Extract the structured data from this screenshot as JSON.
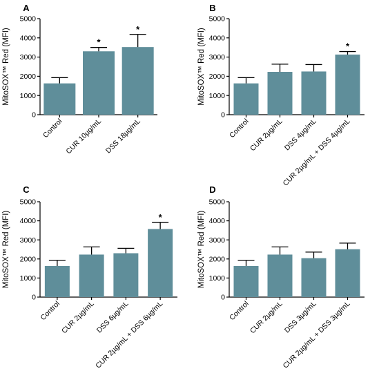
{
  "colors": {
    "bar": "#5f8e9a"
  },
  "chart_data": [
    {
      "type": "bar",
      "panel": "A",
      "ylabel": "MitoSOX™ Red (MFI)",
      "ylim": [
        0,
        5000
      ],
      "yticks": [
        0,
        1000,
        2000,
        3000,
        4000,
        5000
      ],
      "categories": [
        "Control",
        "CUR 10µg/mL",
        "DSS 18µg/mL"
      ],
      "values": [
        1630,
        3300,
        3520
      ],
      "errors": [
        300,
        200,
        660
      ],
      "significance": [
        "",
        "*",
        "*"
      ]
    },
    {
      "type": "bar",
      "panel": "B",
      "ylabel": "MitoSOX™ Red (MFI)",
      "ylim": [
        0,
        5000
      ],
      "yticks": [
        0,
        1000,
        2000,
        3000,
        4000,
        5000
      ],
      "categories": [
        "Control",
        "CUR 2µg/mL",
        "DSS 4µg/mL",
        "CUR 2µg/mL + DSS 4µg/mL"
      ],
      "values": [
        1630,
        2230,
        2250,
        3130
      ],
      "errors": [
        300,
        400,
        360,
        160
      ],
      "significance": [
        "",
        "",
        "",
        "*"
      ]
    },
    {
      "type": "bar",
      "panel": "C",
      "ylabel": "MitoSOX™ Red (MFI)",
      "ylim": [
        0,
        5000
      ],
      "yticks": [
        0,
        1000,
        2000,
        3000,
        4000,
        5000
      ],
      "categories": [
        "Control",
        "CUR 2µg/mL",
        "DSS 6µg/mL",
        "CUR 2µg/mL + DSS 6µg/mL"
      ],
      "values": [
        1630,
        2230,
        2300,
        3570
      ],
      "errors": [
        300,
        400,
        260,
        350
      ],
      "significance": [
        "",
        "",
        "",
        "*"
      ]
    },
    {
      "type": "bar",
      "panel": "D",
      "ylabel": "MitoSOX™ Red (MFI)",
      "ylim": [
        0,
        5000
      ],
      "yticks": [
        0,
        1000,
        2000,
        3000,
        4000,
        5000
      ],
      "categories": [
        "Control",
        "CUR 2µg/mL",
        "DSS 3µg/mL",
        "CUR 2µg/mL + DSS 3µg/mL"
      ],
      "values": [
        1630,
        2230,
        2040,
        2510
      ],
      "errors": [
        300,
        400,
        320,
        320
      ],
      "significance": [
        "",
        "",
        "",
        ""
      ]
    }
  ]
}
